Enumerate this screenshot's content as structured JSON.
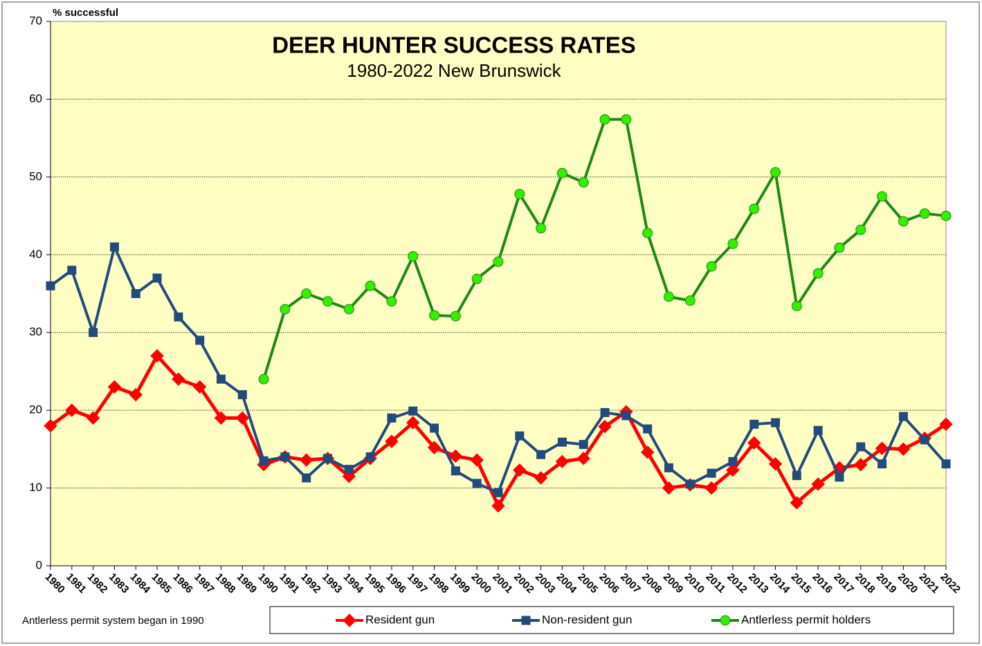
{
  "chart_data": {
    "type": "line",
    "title": "DEER HUNTER SUCCESS RATES",
    "subtitle": "1980-2022 New Brunswick",
    "y_label": "% successful",
    "annotation": "Antlerless permit system began in 1990",
    "x": [
      1980,
      1981,
      1982,
      1983,
      1984,
      1985,
      1986,
      1987,
      1988,
      1989,
      1990,
      1991,
      1992,
      1993,
      1994,
      1995,
      1996,
      1997,
      1998,
      1999,
      2000,
      2001,
      2002,
      2003,
      2004,
      2005,
      2006,
      2007,
      2008,
      2009,
      2010,
      2011,
      2012,
      2013,
      2014,
      2015,
      2016,
      2017,
      2018,
      2019,
      2020,
      2021,
      2022
    ],
    "xlim": [
      1980,
      2022
    ],
    "ylim": [
      0,
      70
    ],
    "yticks": [
      0,
      10,
      20,
      30,
      40,
      50,
      60,
      70
    ],
    "grid": true,
    "series": [
      {
        "name": "Resident gun",
        "color": "#ff0000",
        "marker": "diamond",
        "marker_fill": "#ff0000",
        "values": [
          18,
          20,
          19,
          23,
          22,
          27,
          24,
          23,
          19,
          19,
          13,
          14,
          13.6,
          13.8,
          11.5,
          13.8,
          16,
          18.4,
          15.2,
          14.1,
          13.6,
          7.7,
          12.3,
          11.3,
          13.4,
          13.8,
          17.9,
          19.8,
          14.6,
          10,
          10.4,
          10,
          12.3,
          15.8,
          13.1,
          8.1,
          10.5,
          12.6,
          13,
          15.1,
          15,
          16.4,
          18.2
        ]
      },
      {
        "name": "Non-resident gun",
        "color": "#234a7c",
        "marker": "square",
        "marker_fill": "#234a7c",
        "values": [
          36,
          38,
          30,
          41,
          35,
          37,
          32,
          29,
          24,
          22,
          13.5,
          14,
          11.3,
          13.8,
          12.4,
          14,
          19,
          19.9,
          17.7,
          12.2,
          10.6,
          9.4,
          16.7,
          14.3,
          15.9,
          15.6,
          19.7,
          19.3,
          17.6,
          12.6,
          10.5,
          11.9,
          13.4,
          18.2,
          18.4,
          11.6,
          17.4,
          11.4,
          15.3,
          13.1,
          19.2,
          16.2,
          13.1
        ]
      },
      {
        "name": "Antlerless permit holders",
        "color": "#1f8a13",
        "marker": "circle",
        "marker_fill": "#33ee00",
        "values": [
          null,
          null,
          null,
          null,
          null,
          null,
          null,
          null,
          null,
          null,
          24,
          33,
          35,
          34,
          33,
          36,
          34,
          39.8,
          32.2,
          32.1,
          36.9,
          39.1,
          47.8,
          43.4,
          50.5,
          49.3,
          57.4,
          57.4,
          42.8,
          34.6,
          34.1,
          38.5,
          41.4,
          45.9,
          50.6,
          33.4,
          37.6,
          40.9,
          43.2,
          47.5,
          44.3,
          45.3,
          45
        ]
      }
    ]
  }
}
